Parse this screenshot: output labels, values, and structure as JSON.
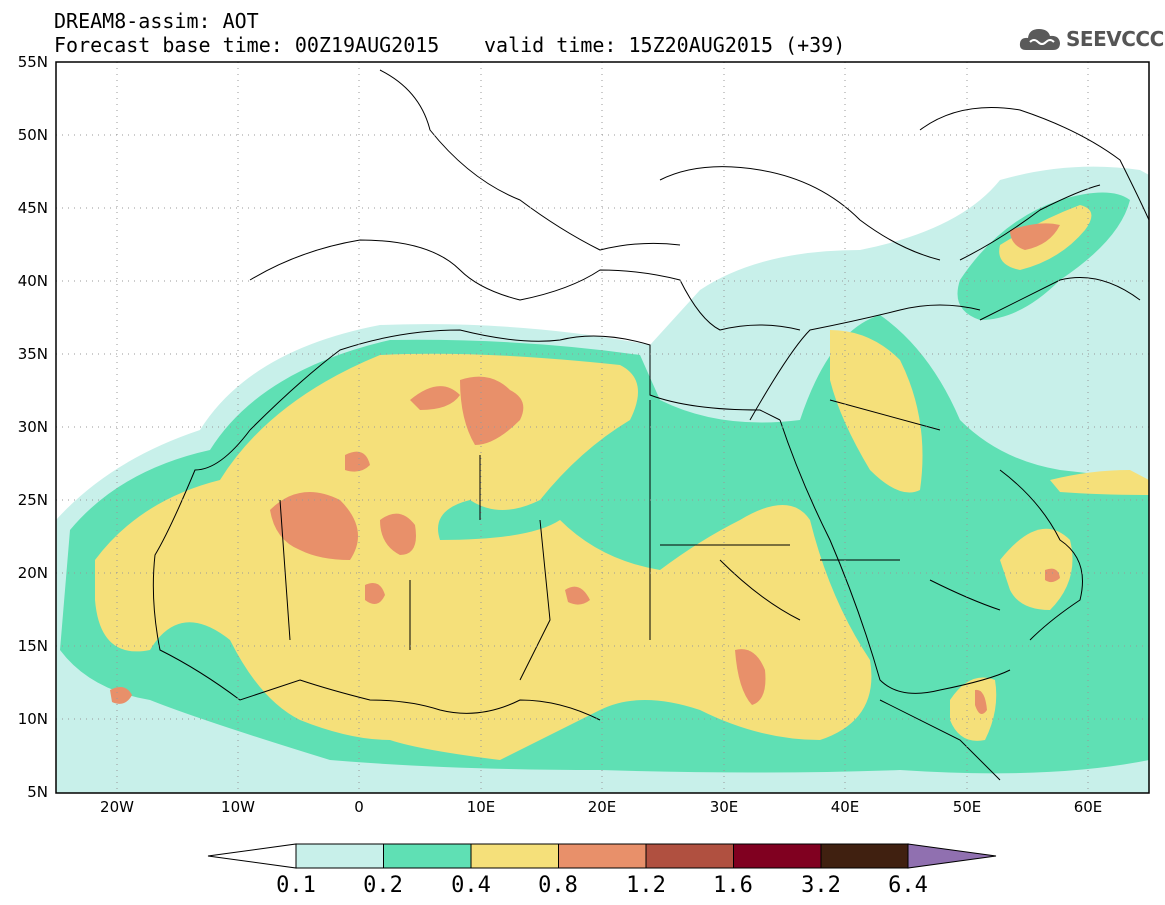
{
  "header": {
    "title": "DREAM8-assim: AOT",
    "base_time": "Forecast base time: 00Z19AUG2015",
    "valid_time": "valid time: 15Z20AUG2015 (+39)",
    "logo_text": "SEEVCCC",
    "logo_icon": "cloud-logo-icon"
  },
  "map": {
    "lat_labels": [
      "55N",
      "50N",
      "45N",
      "40N",
      "35N",
      "30N",
      "25N",
      "20N",
      "15N",
      "10N",
      "5N"
    ],
    "lon_labels": [
      "20W",
      "10W",
      "0",
      "10E",
      "20E",
      "30E",
      "40E",
      "50E",
      "60E"
    ],
    "extent": {
      "lon_min": -25,
      "lon_max": 65,
      "lat_min": 5,
      "lat_max": 55
    }
  },
  "colorbar": {
    "labels": [
      "0.1",
      "0.2",
      "0.4",
      "0.8",
      "1.2",
      "1.6",
      "3.2",
      "6.4"
    ],
    "colors": [
      "#c8f0ea",
      "#5fe0b4",
      "#f5e07a",
      "#e8906a",
      "#b05040",
      "#800020",
      "#402010",
      "#9070b0"
    ],
    "under_color": "#ffffff"
  }
}
